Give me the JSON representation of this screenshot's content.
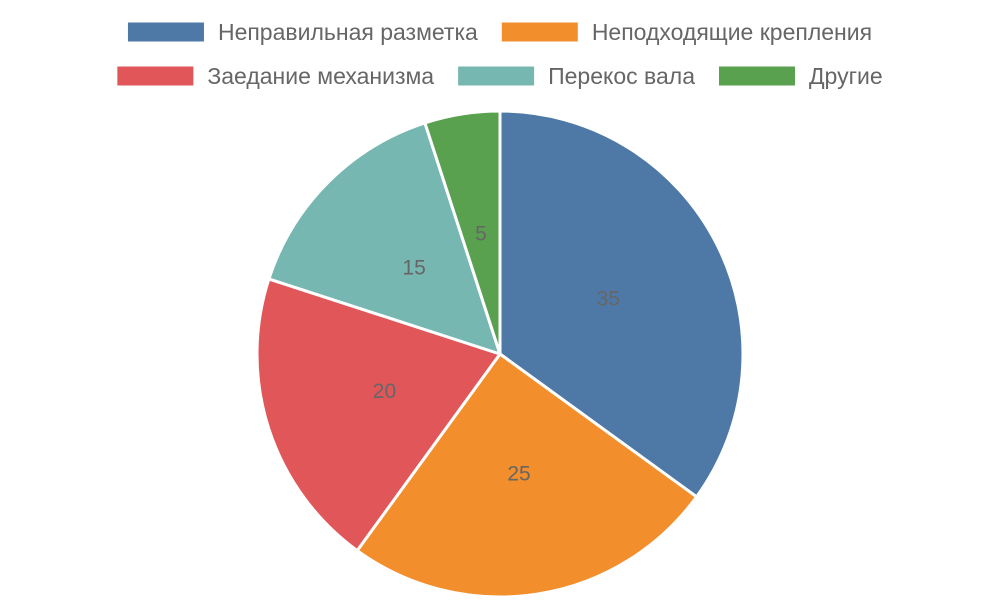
{
  "chart_data": {
    "type": "pie",
    "legend_position": "top",
    "start_angle": "top, clockwise",
    "series": [
      {
        "categories": [
          "Неправильная разметка",
          "Неподходящие крепления",
          "Заедание механизма",
          "Перекос вала",
          "Другие"
        ],
        "values": [
          35,
          25,
          20,
          15,
          5
        ],
        "colors": [
          "#4e79a7",
          "#f28e2b",
          "#e15759",
          "#76b7b2",
          "#59a14f"
        ],
        "data_labels": [
          "35",
          "25",
          "20",
          "15",
          "5"
        ]
      }
    ],
    "slice_border_color": "#ffffff"
  }
}
